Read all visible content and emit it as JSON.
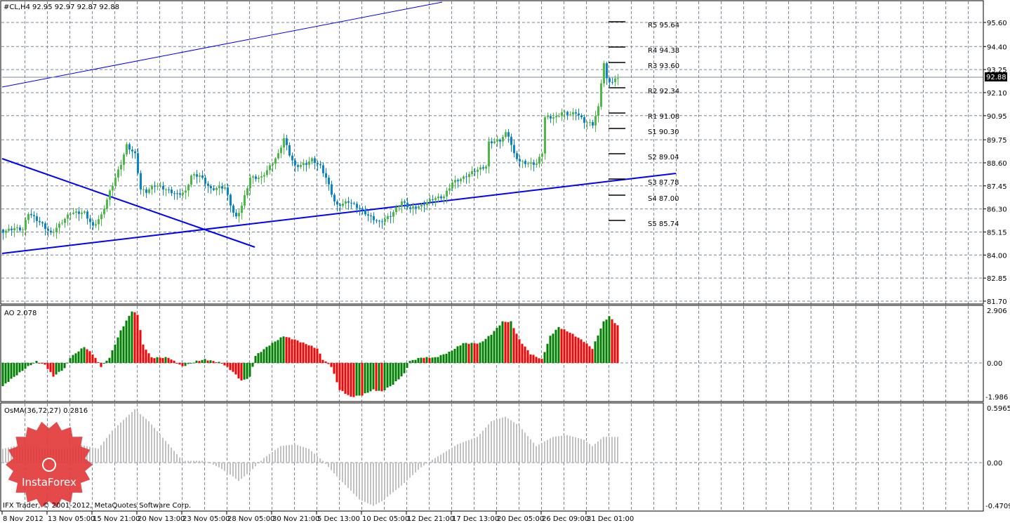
{
  "header": {
    "symbol": "#CL,H4",
    "ohlc": "92.95 92.97 92.87 92.88"
  },
  "price_axis": {
    "ticks": [
      "95.60",
      "94.40",
      "93.25",
      "92.10",
      "90.95",
      "89.75",
      "88.60",
      "87.45",
      "86.30",
      "85.15",
      "84.00",
      "82.85",
      "81.70"
    ],
    "current_price": "92.88"
  },
  "pivots": [
    {
      "label": "R5 95.64",
      "value": 95.64
    },
    {
      "label": "R4 94.38",
      "value": 94.38
    },
    {
      "label": "R3 93.60",
      "value": 93.6
    },
    {
      "label": "R2 92.34",
      "value": 92.34
    },
    {
      "label": "R1 91.08",
      "value": 91.08
    },
    {
      "label": "S1 90.30",
      "value": 90.3
    },
    {
      "label": "S2 89.04",
      "value": 89.04
    },
    {
      "label": "S3 87.78",
      "value": 87.78
    },
    {
      "label": "S4 87.00",
      "value": 87.0
    },
    {
      "label": "S5 85.74",
      "value": 85.74
    }
  ],
  "ao": {
    "title": "AO 2.078",
    "max": "2.906",
    "zero": "0.00",
    "min": "-1.986"
  },
  "osma": {
    "title": "OsMA(36,72,27) 0.2816",
    "max": "0.5965",
    "zero": "0.00",
    "min": "-0.4709"
  },
  "time_axis": [
    "8 Nov 2012",
    "13 Nov 05:00",
    "15 Nov 21:00",
    "20 Nov 13:00",
    "23 Nov 05:00",
    "28 Nov 05:00",
    "30 Nov 21:00",
    "5 Dec 13:00",
    "10 Dec 05:00",
    "12 Dec 21:00",
    "17 Dec 13:00",
    "20 Dec 05:00",
    "26 Dec 09:00",
    "31 Dec 01:00"
  ],
  "copyright": "IFX Trader, © 2001-2012, MetaQuotes Software Corp.",
  "logo": {
    "text": "InstaForex"
  },
  "colors": {
    "bull": "#4cb848",
    "bear": "#0a84c6",
    "ao_up": "#008000",
    "ao_down": "#ff0000",
    "osma": "#c0c0c0",
    "trendline": "#0000ff",
    "grid": "#7a8796"
  },
  "chart_data": {
    "type": "candlestick",
    "symbol": "#CL",
    "timeframe": "H4",
    "ylim": [
      81.7,
      96.4
    ],
    "bars": 220,
    "close_keypoints": [
      [
        0,
        85.17
      ],
      [
        4,
        85.34
      ],
      [
        7,
        85.27
      ],
      [
        9,
        86.11
      ],
      [
        14,
        85.52
      ],
      [
        17,
        85.06
      ],
      [
        24,
        86.11
      ],
      [
        29,
        86.11
      ],
      [
        32,
        85.41
      ],
      [
        35,
        85.97
      ],
      [
        38,
        87.16
      ],
      [
        42,
        88.56
      ],
      [
        44,
        89.47
      ],
      [
        47,
        89.02
      ],
      [
        49,
        87.27
      ],
      [
        51,
        87.16
      ],
      [
        54,
        87.51
      ],
      [
        58,
        87.27
      ],
      [
        62,
        87.02
      ],
      [
        65,
        87.16
      ],
      [
        67,
        87.97
      ],
      [
        70,
        87.97
      ],
      [
        74,
        87.27
      ],
      [
        77,
        87.37
      ],
      [
        79,
        87.37
      ],
      [
        82,
        86.11
      ],
      [
        83,
        85.87
      ],
      [
        85,
        86.46
      ],
      [
        88,
        87.86
      ],
      [
        92,
        87.86
      ],
      [
        95,
        88.42
      ],
      [
        98,
        89.02
      ],
      [
        100,
        89.82
      ],
      [
        102,
        89.02
      ],
      [
        104,
        88.42
      ],
      [
        108,
        88.56
      ],
      [
        110,
        88.77
      ],
      [
        113,
        88.42
      ],
      [
        115,
        87.86
      ],
      [
        118,
        86.67
      ],
      [
        119,
        86.46
      ],
      [
        123,
        86.67
      ],
      [
        127,
        86.32
      ],
      [
        130,
        85.97
      ],
      [
        134,
        85.62
      ],
      [
        138,
        85.97
      ],
      [
        142,
        86.67
      ],
      [
        145,
        86.32
      ],
      [
        149,
        86.46
      ],
      [
        153,
        86.81
      ],
      [
        157,
        86.92
      ],
      [
        160,
        87.62
      ],
      [
        164,
        87.86
      ],
      [
        168,
        88.21
      ],
      [
        172,
        88.42
      ],
      [
        173,
        89.61
      ],
      [
        177,
        89.72
      ],
      [
        179,
        90.07
      ],
      [
        180,
        89.96
      ],
      [
        182,
        89.02
      ],
      [
        184,
        88.67
      ],
      [
        187,
        88.56
      ],
      [
        190,
        88.56
      ],
      [
        192,
        89.12
      ],
      [
        193,
        90.87
      ],
      [
        197,
        90.87
      ],
      [
        199,
        91.12
      ],
      [
        202,
        91.01
      ],
      [
        204,
        91.12
      ],
      [
        207,
        90.66
      ],
      [
        210,
        90.52
      ],
      [
        212,
        91.36
      ],
      [
        213,
        92.62
      ],
      [
        214,
        93.57
      ],
      [
        215,
        92.76
      ],
      [
        217,
        92.62
      ],
      [
        219,
        92.88
      ]
    ],
    "ao_keypoints": [
      [
        0,
        -1.3
      ],
      [
        3,
        -0.9
      ],
      [
        9,
        -0.2
      ],
      [
        12,
        0.1
      ],
      [
        15,
        -0.1
      ],
      [
        18,
        -0.75
      ],
      [
        22,
        -0.3
      ],
      [
        24,
        0.3
      ],
      [
        29,
        0.9
      ],
      [
        32,
        0.5
      ],
      [
        35,
        -0.2
      ],
      [
        38,
        0.3
      ],
      [
        42,
        1.8
      ],
      [
        46,
        2.9
      ],
      [
        48,
        2.7
      ],
      [
        50,
        1.0
      ],
      [
        53,
        0.3
      ],
      [
        59,
        0.3
      ],
      [
        64,
        -0.2
      ],
      [
        69,
        0.1
      ],
      [
        72,
        0.2
      ],
      [
        78,
        0.0
      ],
      [
        82,
        -0.5
      ],
      [
        85,
        -1.0
      ],
      [
        88,
        -0.8
      ],
      [
        90,
        0.4
      ],
      [
        95,
        1.0
      ],
      [
        100,
        1.5
      ],
      [
        104,
        1.3
      ],
      [
        109,
        1.0
      ],
      [
        112,
        0.8
      ],
      [
        114,
        0.2
      ],
      [
        117,
        -0.2
      ],
      [
        120,
        -1.5
      ],
      [
        124,
        -1.9
      ],
      [
        128,
        -1.8
      ],
      [
        132,
        -1.5
      ],
      [
        135,
        -1.6
      ],
      [
        139,
        -1.2
      ],
      [
        143,
        -0.6
      ],
      [
        145,
        0.1
      ],
      [
        149,
        0.3
      ],
      [
        154,
        0.3
      ],
      [
        159,
        0.6
      ],
      [
        164,
        1.1
      ],
      [
        170,
        1.1
      ],
      [
        174,
        1.6
      ],
      [
        178,
        2.3
      ],
      [
        181,
        2.3
      ],
      [
        184,
        1.3
      ],
      [
        188,
        0.5
      ],
      [
        192,
        0.2
      ],
      [
        195,
        1.5
      ],
      [
        198,
        2.0
      ],
      [
        202,
        1.7
      ],
      [
        207,
        1.2
      ],
      [
        210,
        0.8
      ],
      [
        214,
        2.3
      ],
      [
        216,
        2.6
      ],
      [
        219,
        2.08
      ]
    ],
    "osma_keypoints": [
      [
        0,
        0.15
      ],
      [
        7,
        0.2
      ],
      [
        15,
        0.15
      ],
      [
        22,
        0.15
      ],
      [
        27,
        0.2
      ],
      [
        34,
        0.15
      ],
      [
        39,
        0.35
      ],
      [
        47,
        0.58
      ],
      [
        52,
        0.45
      ],
      [
        59,
        0.2
      ],
      [
        64,
        0.02
      ],
      [
        72,
        0.02
      ],
      [
        77,
        -0.05
      ],
      [
        82,
        -0.15
      ],
      [
        84,
        -0.2
      ],
      [
        88,
        -0.1
      ],
      [
        93,
        0.05
      ],
      [
        99,
        0.18
      ],
      [
        104,
        0.2
      ],
      [
        109,
        0.15
      ],
      [
        114,
        0.02
      ],
      [
        119,
        -0.15
      ],
      [
        127,
        -0.4
      ],
      [
        132,
        -0.47
      ],
      [
        135,
        -0.42
      ],
      [
        142,
        -0.25
      ],
      [
        149,
        -0.05
      ],
      [
        154,
        0.05
      ],
      [
        162,
        0.2
      ],
      [
        169,
        0.28
      ],
      [
        174,
        0.45
      ],
      [
        179,
        0.5
      ],
      [
        184,
        0.4
      ],
      [
        190,
        0.18
      ],
      [
        196,
        0.28
      ],
      [
        201,
        0.3
      ],
      [
        207,
        0.25
      ],
      [
        210,
        0.18
      ],
      [
        214,
        0.28
      ],
      [
        219,
        0.28
      ]
    ]
  }
}
